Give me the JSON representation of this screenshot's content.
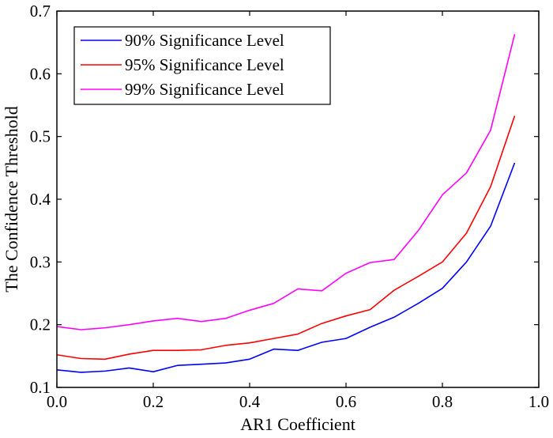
{
  "chart_data": {
    "type": "line",
    "title": "",
    "xlabel": "AR1 Coefficient",
    "ylabel": "The Confidence Threshold",
    "xlim": [
      0.0,
      1.0
    ],
    "ylim": [
      0.1,
      0.7
    ],
    "xticks": [
      0.0,
      0.2,
      0.4,
      0.6,
      0.8,
      1.0
    ],
    "xtick_labels": [
      "0.0",
      "0.2",
      "0.4",
      "0.6",
      "0.8",
      "1.0"
    ],
    "yticks": [
      0.1,
      0.2,
      0.3,
      0.4,
      0.5,
      0.6,
      0.7
    ],
    "ytick_labels": [
      "0.1",
      "0.2",
      "0.3",
      "0.4",
      "0.5",
      "0.6",
      "0.7"
    ],
    "grid": false,
    "legend_position": "top-left",
    "x": [
      0.0,
      0.05,
      0.1,
      0.15,
      0.2,
      0.25,
      0.3,
      0.35,
      0.4,
      0.45,
      0.5,
      0.55,
      0.6,
      0.65,
      0.7,
      0.75,
      0.8,
      0.85,
      0.9,
      0.95
    ],
    "series": [
      {
        "name": "90% Significance Level",
        "color": "#0000ff",
        "values": [
          0.128,
          0.124,
          0.126,
          0.131,
          0.125,
          0.135,
          0.137,
          0.139,
          0.145,
          0.161,
          0.159,
          0.172,
          0.178,
          0.196,
          0.212,
          0.234,
          0.258,
          0.3,
          0.357,
          0.458
        ]
      },
      {
        "name": "95% Significance Level",
        "color": "#ff0000",
        "values": [
          0.152,
          0.146,
          0.145,
          0.153,
          0.159,
          0.159,
          0.16,
          0.167,
          0.171,
          0.178,
          0.185,
          0.202,
          0.214,
          0.224,
          0.255,
          0.277,
          0.3,
          0.346,
          0.42,
          0.533
        ]
      },
      {
        "name": "99% Significance Level",
        "color": "#ff00ff",
        "values": [
          0.197,
          0.192,
          0.195,
          0.2,
          0.206,
          0.21,
          0.205,
          0.21,
          0.223,
          0.234,
          0.257,
          0.254,
          0.282,
          0.299,
          0.304,
          0.35,
          0.407,
          0.442,
          0.51,
          0.663
        ]
      }
    ]
  }
}
